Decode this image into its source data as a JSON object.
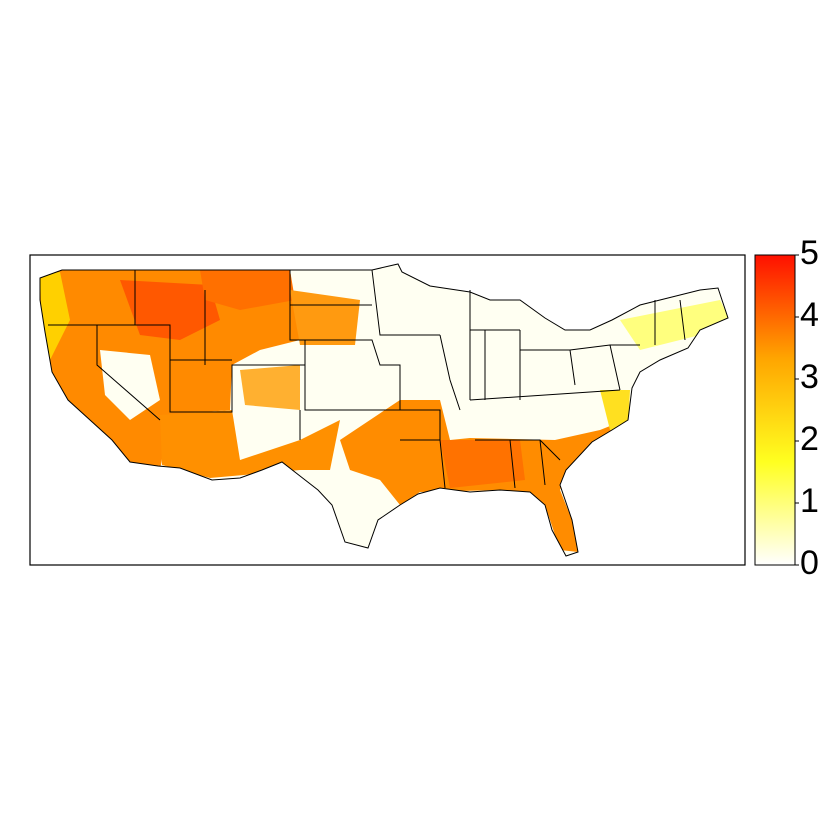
{
  "chart_data": {
    "type": "heatmap-map",
    "colorbar": {
      "lim": [
        0,
        5
      ],
      "ticks": [
        0,
        1,
        2,
        3,
        4,
        5
      ],
      "colors": [
        "#ffffff",
        "#ffff20",
        "#ffa500",
        "#ff1000"
      ]
    }
  }
}
